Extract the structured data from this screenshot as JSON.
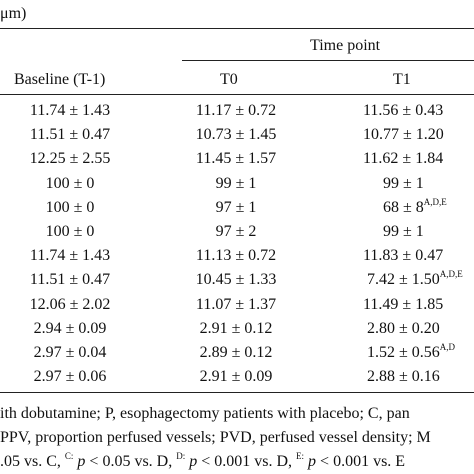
{
  "unit_fragment": "μm)",
  "header": {
    "group_label": "Time point",
    "columns": [
      "Baseline (T-1)",
      "T0",
      "T1"
    ]
  },
  "rows": [
    {
      "baseline": "11.74 ± 1.43",
      "t0": "11.17 ± 0.72",
      "t1": "11.56 ± 0.43",
      "t1_sup": ""
    },
    {
      "baseline": "11.51 ± 0.47",
      "t0": "10.73 ± 1.45",
      "t1": "10.77 ± 1.20",
      "t1_sup": ""
    },
    {
      "baseline": "12.25 ± 2.55",
      "t0": "11.45 ± 1.57",
      "t1": "11.62 ± 1.84",
      "t1_sup": ""
    },
    {
      "baseline": "100 ± 0",
      "t0": "99 ± 1",
      "t1": "99 ± 1",
      "t1_sup": ""
    },
    {
      "baseline": "100 ± 0",
      "t0": "97 ± 1",
      "t1": "68 ± 8",
      "t1_sup": "A,D,E"
    },
    {
      "baseline": "100 ± 0",
      "t0": "97 ± 2",
      "t1": "99 ± 1",
      "t1_sup": ""
    },
    {
      "baseline": "11.74 ± 1.43",
      "t0": "11.13 ± 0.72",
      "t1": "11.83 ± 0.47",
      "t1_sup": ""
    },
    {
      "baseline": "11.51 ± 0.47",
      "t0": "10.45 ± 1.33",
      "t1": "7.42 ± 1.50",
      "t1_sup": "A,D,E"
    },
    {
      "baseline": "12.06 ± 2.02",
      "t0": "11.07 ± 1.37",
      "t1": "11.49 ± 1.85",
      "t1_sup": ""
    },
    {
      "baseline": "2.94 ± 0.09",
      "t0": "2.91 ± 0.12",
      "t1": "2.80 ± 0.20",
      "t1_sup": ""
    },
    {
      "baseline": "2.97 ± 0.04",
      "t0": "2.89 ± 0.12",
      "t1": "1.52 ± 0.56",
      "t1_sup": "A,D"
    },
    {
      "baseline": "2.97 ± 0.06",
      "t0": "2.91 ± 0.09",
      "t1": "2.88 ± 0.16",
      "t1_sup": ""
    }
  ],
  "footnotes": {
    "line1": "ith dobutamine; P, esophagectomy patients with placebo; C, pan",
    "line2": " PPV, proportion perfused vessels; PVD, perfused vessel density; M",
    "line3": {
      "a": ".05 vs. C, ",
      "sup_c": "C:",
      "p1": "p",
      "b": " < 0.05 vs. D, ",
      "sup_d": "D:",
      "p2": "p",
      "c": " < 0.001 vs. D, ",
      "sup_e": "E:",
      "p3": "p",
      "d": " < 0.001 vs. E"
    }
  }
}
